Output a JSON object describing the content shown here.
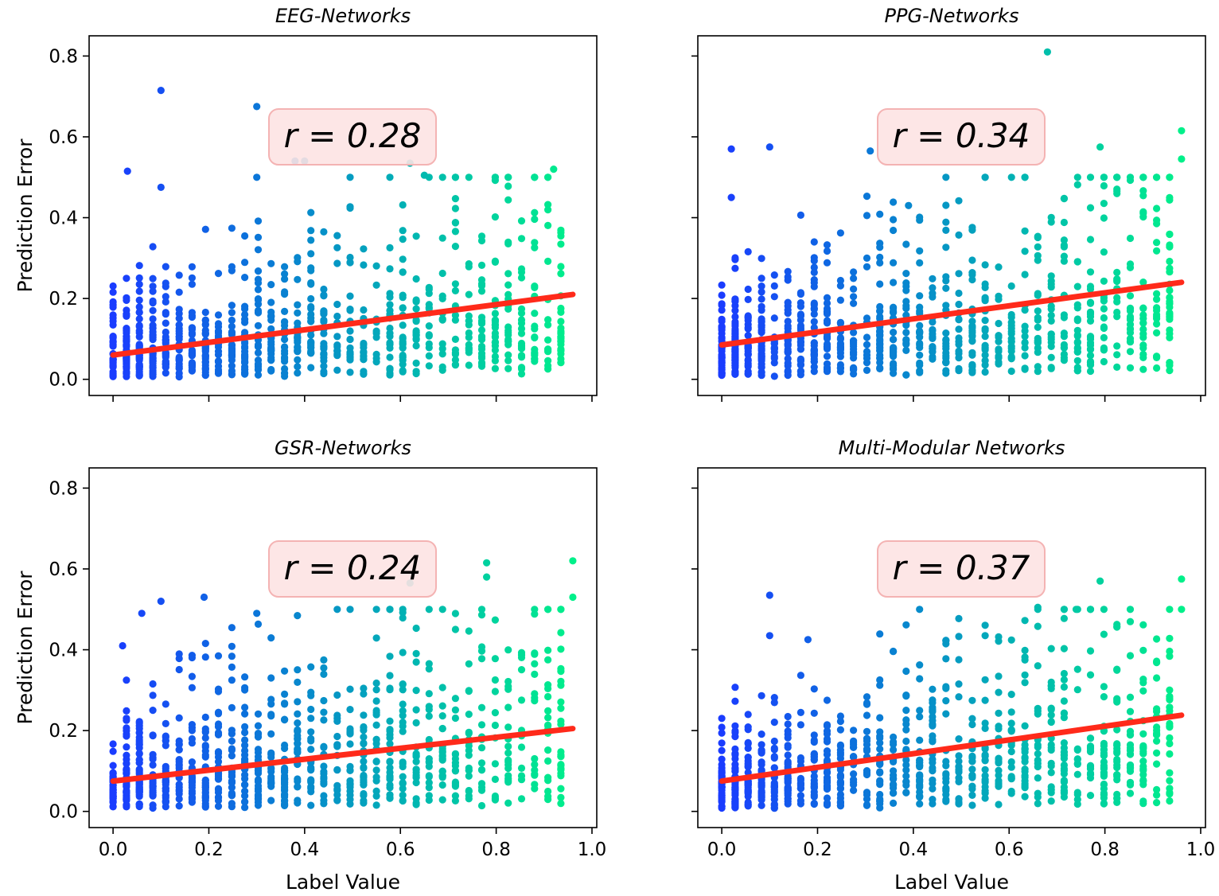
{
  "figure": {
    "axis_colors": {
      "frame": "#000000",
      "fit_line": "#ff2a1a",
      "r_box_fill": "#fde3e3",
      "r_box_edge": "#f4b3b3"
    },
    "point_colormap": [
      "#1a3cff",
      "#0a7ad6",
      "#00b8b0",
      "#00f08a"
    ]
  },
  "chart_data": [
    {
      "type": "scatter",
      "title": "EEG-Networks",
      "xlabel": "",
      "ylabel": "Prediction Error",
      "xlim": [
        -0.05,
        1.01
      ],
      "ylim": [
        -0.04,
        0.85
      ],
      "xticks": [
        "0.0",
        "0.2",
        "0.4",
        "0.6",
        "0.8",
        "1.0"
      ],
      "yticks": [
        "0.0",
        "0.2",
        "0.4",
        "0.6",
        "0.8"
      ],
      "show_xtick_labels": false,
      "show_ytick_labels": true,
      "annotation": "r = 0.28",
      "fit_line": {
        "x": [
          0.0,
          0.96
        ],
        "y": [
          0.06,
          0.21
        ]
      },
      "outliers": [
        [
          0.1,
          0.715
        ],
        [
          0.3,
          0.675
        ],
        [
          0.38,
          0.54
        ],
        [
          0.4,
          0.54
        ],
        [
          0.62,
          0.535
        ],
        [
          0.65,
          0.505
        ],
        [
          0.03,
          0.515
        ],
        [
          0.1,
          0.475
        ],
        [
          0.92,
          0.52
        ],
        [
          0.3,
          0.5
        ]
      ],
      "point_seed": 11,
      "point_count": 900,
      "point_trend": {
        "intercept": 0.06,
        "slope": 0.155,
        "spread": 0.11
      }
    },
    {
      "type": "scatter",
      "title": "PPG-Networks",
      "xlabel": "",
      "ylabel": "",
      "xlim": [
        -0.05,
        1.01
      ],
      "ylim": [
        -0.04,
        0.85
      ],
      "xticks": [
        "0.0",
        "0.2",
        "0.4",
        "0.6",
        "0.8",
        "1.0"
      ],
      "yticks": [
        "0.0",
        "0.2",
        "0.4",
        "0.6",
        "0.8"
      ],
      "show_xtick_labels": false,
      "show_ytick_labels": false,
      "annotation": "r = 0.34",
      "fit_line": {
        "x": [
          0.0,
          0.96
        ],
        "y": [
          0.085,
          0.24
        ]
      },
      "outliers": [
        [
          0.68,
          0.81
        ],
        [
          0.1,
          0.575
        ],
        [
          0.02,
          0.57
        ],
        [
          0.31,
          0.565
        ],
        [
          0.96,
          0.615
        ],
        [
          0.96,
          0.545
        ],
        [
          0.79,
          0.575
        ],
        [
          0.39,
          0.43
        ],
        [
          0.02,
          0.45
        ]
      ],
      "point_seed": 23,
      "point_count": 900,
      "point_trend": {
        "intercept": 0.085,
        "slope": 0.16,
        "spread": 0.12
      }
    },
    {
      "type": "scatter",
      "title": "GSR-Networks",
      "xlabel": "Label Value",
      "ylabel": "Prediction Error",
      "xlim": [
        -0.05,
        1.01
      ],
      "ylim": [
        -0.04,
        0.85
      ],
      "xticks": [
        "0.0",
        "0.2",
        "0.4",
        "0.6",
        "0.8",
        "1.0"
      ],
      "yticks": [
        "0.0",
        "0.2",
        "0.4",
        "0.6",
        "0.8"
      ],
      "show_xtick_labels": true,
      "show_ytick_labels": true,
      "annotation": "r = 0.24",
      "fit_line": {
        "x": [
          0.0,
          0.96
        ],
        "y": [
          0.075,
          0.205
        ]
      },
      "outliers": [
        [
          0.62,
          0.565
        ],
        [
          0.19,
          0.53
        ],
        [
          0.1,
          0.52
        ],
        [
          0.06,
          0.49
        ],
        [
          0.3,
          0.49
        ],
        [
          0.78,
          0.615
        ],
        [
          0.96,
          0.62
        ],
        [
          0.96,
          0.53
        ],
        [
          0.78,
          0.58
        ],
        [
          0.02,
          0.41
        ]
      ],
      "point_seed": 37,
      "point_count": 900,
      "point_trend": {
        "intercept": 0.075,
        "slope": 0.135,
        "spread": 0.12
      }
    },
    {
      "type": "scatter",
      "title": "Multi-Modular Networks",
      "xlabel": "Label Value",
      "ylabel": "",
      "xlim": [
        -0.05,
        1.01
      ],
      "ylim": [
        -0.04,
        0.85
      ],
      "xticks": [
        "0.0",
        "0.2",
        "0.4",
        "0.6",
        "0.8",
        "1.0"
      ],
      "yticks": [
        "0.0",
        "0.2",
        "0.4",
        "0.6",
        "0.8"
      ],
      "show_xtick_labels": true,
      "show_ytick_labels": false,
      "annotation": "r = 0.37",
      "fit_line": {
        "x": [
          0.0,
          0.96
        ],
        "y": [
          0.075,
          0.238
        ]
      },
      "outliers": [
        [
          0.1,
          0.535
        ],
        [
          0.96,
          0.575
        ],
        [
          0.96,
          0.5
        ],
        [
          0.79,
          0.57
        ],
        [
          0.66,
          0.505
        ],
        [
          0.74,
          0.5
        ],
        [
          0.1,
          0.435
        ],
        [
          0.18,
          0.425
        ]
      ],
      "point_seed": 53,
      "point_count": 900,
      "point_trend": {
        "intercept": 0.075,
        "slope": 0.17,
        "spread": 0.11
      }
    }
  ]
}
